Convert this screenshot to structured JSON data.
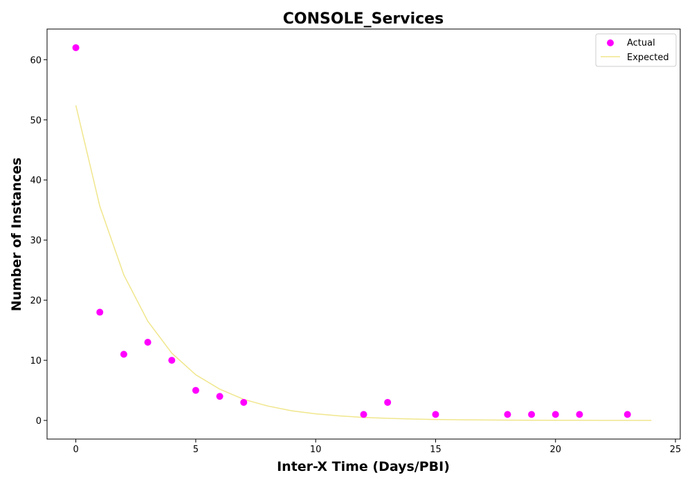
{
  "chart_data": {
    "type": "scatter",
    "title": "CONSOLE_Services",
    "xlabel": "Inter-X Time (Days/PBI)",
    "ylabel": "Number of Instances",
    "xlim": [
      -1.2,
      25.2
    ],
    "ylim": [
      -3.1,
      65.1
    ],
    "xticks": [
      0,
      5,
      10,
      15,
      20,
      25
    ],
    "yticks": [
      0,
      10,
      20,
      30,
      40,
      50,
      60
    ],
    "grid": false,
    "legend_position": "top-right",
    "series": [
      {
        "name": "Actual",
        "kind": "scatter",
        "color": "#ff00ff",
        "points": [
          {
            "x": 0,
            "y": 62
          },
          {
            "x": 1,
            "y": 18
          },
          {
            "x": 2,
            "y": 11
          },
          {
            "x": 3,
            "y": 13
          },
          {
            "x": 4,
            "y": 10
          },
          {
            "x": 5,
            "y": 5
          },
          {
            "x": 6,
            "y": 4
          },
          {
            "x": 7,
            "y": 3
          },
          {
            "x": 12,
            "y": 1
          },
          {
            "x": 13,
            "y": 3
          },
          {
            "x": 15,
            "y": 1
          },
          {
            "x": 18,
            "y": 1
          },
          {
            "x": 19,
            "y": 1
          },
          {
            "x": 20,
            "y": 1
          },
          {
            "x": 21,
            "y": 1
          },
          {
            "x": 23,
            "y": 1
          }
        ]
      },
      {
        "name": "Expected",
        "kind": "line",
        "color": "#f0e68c",
        "points": [
          {
            "x": 0,
            "y": 52.4
          },
          {
            "x": 1,
            "y": 35.6
          },
          {
            "x": 2,
            "y": 24.2
          },
          {
            "x": 3,
            "y": 16.5
          },
          {
            "x": 4,
            "y": 11.2
          },
          {
            "x": 5,
            "y": 7.6
          },
          {
            "x": 6,
            "y": 5.2
          },
          {
            "x": 7,
            "y": 3.5
          },
          {
            "x": 8,
            "y": 2.4
          },
          {
            "x": 9,
            "y": 1.6
          },
          {
            "x": 10,
            "y": 1.1
          },
          {
            "x": 11,
            "y": 0.75
          },
          {
            "x": 12,
            "y": 0.5
          },
          {
            "x": 13,
            "y": 0.35
          },
          {
            "x": 14,
            "y": 0.24
          },
          {
            "x": 15,
            "y": 0.16
          },
          {
            "x": 16,
            "y": 0.11
          },
          {
            "x": 17,
            "y": 0.07
          },
          {
            "x": 18,
            "y": 0.05
          },
          {
            "x": 19,
            "y": 0.03
          },
          {
            "x": 20,
            "y": 0.02
          },
          {
            "x": 21,
            "y": 0.015
          },
          {
            "x": 22,
            "y": 0.01
          },
          {
            "x": 23,
            "y": 0.007
          },
          {
            "x": 24,
            "y": 0.005
          }
        ]
      }
    ]
  }
}
